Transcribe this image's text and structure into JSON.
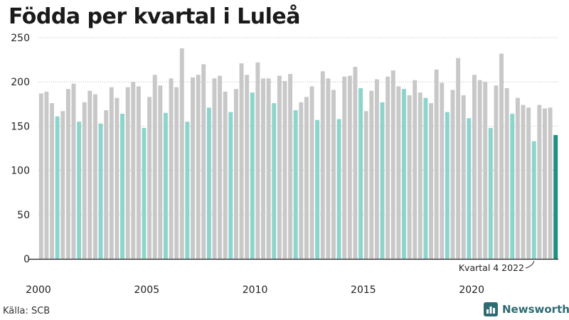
{
  "header": {
    "title": "Födda per kvartal i Luleå"
  },
  "footer": {
    "source": "Källa: SCB",
    "brand": "Newsworthy"
  },
  "colors": {
    "regular": "#c8c8c8",
    "q4": "#8dd5cc",
    "latest": "#1f8f83",
    "gridline": "#bbbbbb",
    "axis": "#222222",
    "brand": "#2e6b73"
  },
  "chart_data": {
    "type": "bar",
    "title": "Födda per kvartal i Luleå",
    "xlabel": "",
    "ylabel": "",
    "ylim": [
      0,
      250
    ],
    "yticks": [
      0,
      50,
      100,
      150,
      200,
      250
    ],
    "xtick_labels": [
      "2000",
      "2005",
      "2010",
      "2015",
      "2020"
    ],
    "start_year": 2000,
    "highlight": "Kvartal 4 each year lighter teal; latest quarter dark teal",
    "annotation": "Kvartal 4 2022",
    "categories": [
      "2000 K1",
      "2000 K2",
      "2000 K3",
      "2000 K4",
      "2001 K1",
      "2001 K2",
      "2001 K3",
      "2001 K4",
      "2002 K1",
      "2002 K2",
      "2002 K3",
      "2002 K4",
      "2003 K1",
      "2003 K2",
      "2003 K3",
      "2003 K4",
      "2004 K1",
      "2004 K2",
      "2004 K3",
      "2004 K4",
      "2005 K1",
      "2005 K2",
      "2005 K3",
      "2005 K4",
      "2006 K1",
      "2006 K2",
      "2006 K3",
      "2006 K4",
      "2007 K1",
      "2007 K2",
      "2007 K3",
      "2007 K4",
      "2008 K1",
      "2008 K2",
      "2008 K3",
      "2008 K4",
      "2009 K1",
      "2009 K2",
      "2009 K3",
      "2009 K4",
      "2010 K1",
      "2010 K2",
      "2010 K3",
      "2010 K4",
      "2011 K1",
      "2011 K2",
      "2011 K3",
      "2011 K4",
      "2012 K1",
      "2012 K2",
      "2012 K3",
      "2012 K4",
      "2013 K1",
      "2013 K2",
      "2013 K3",
      "2013 K4",
      "2014 K1",
      "2014 K2",
      "2014 K3",
      "2014 K4",
      "2015 K1",
      "2015 K2",
      "2015 K3",
      "2015 K4",
      "2016 K1",
      "2016 K2",
      "2016 K3",
      "2016 K4",
      "2017 K1",
      "2017 K2",
      "2017 K3",
      "2017 K4",
      "2018 K1",
      "2018 K2",
      "2018 K3",
      "2018 K4",
      "2019 K1",
      "2019 K2",
      "2019 K3",
      "2019 K4",
      "2020 K1",
      "2020 K2",
      "2020 K3",
      "2020 K4",
      "2021 K1",
      "2021 K2",
      "2021 K3",
      "2021 K4",
      "2022 K1",
      "2022 K2",
      "2022 K3",
      "2022 K4",
      "2023 K1",
      "2023 K2",
      "2023 K3",
      "2023 K4"
    ],
    "values": [
      187,
      189,
      176,
      161,
      167,
      192,
      198,
      155,
      177,
      190,
      186,
      153,
      168,
      194,
      182,
      164,
      194,
      200,
      195,
      148,
      183,
      208,
      196,
      165,
      204,
      194,
      238,
      155,
      205,
      208,
      220,
      171,
      204,
      207,
      189,
      166,
      192,
      221,
      208,
      188,
      222,
      204,
      204,
      176,
      207,
      201,
      209,
      168,
      177,
      183,
      195,
      157,
      212,
      204,
      191,
      158,
      206,
      207,
      217,
      193,
      167,
      190,
      203,
      177,
      206,
      213,
      195,
      192,
      185,
      202,
      188,
      182,
      176,
      214,
      199,
      166,
      191,
      227,
      185,
      159,
      208,
      202,
      200,
      148,
      196,
      232,
      193,
      164,
      182,
      174,
      171,
      133,
      174,
      170,
      171,
      140
    ]
  }
}
